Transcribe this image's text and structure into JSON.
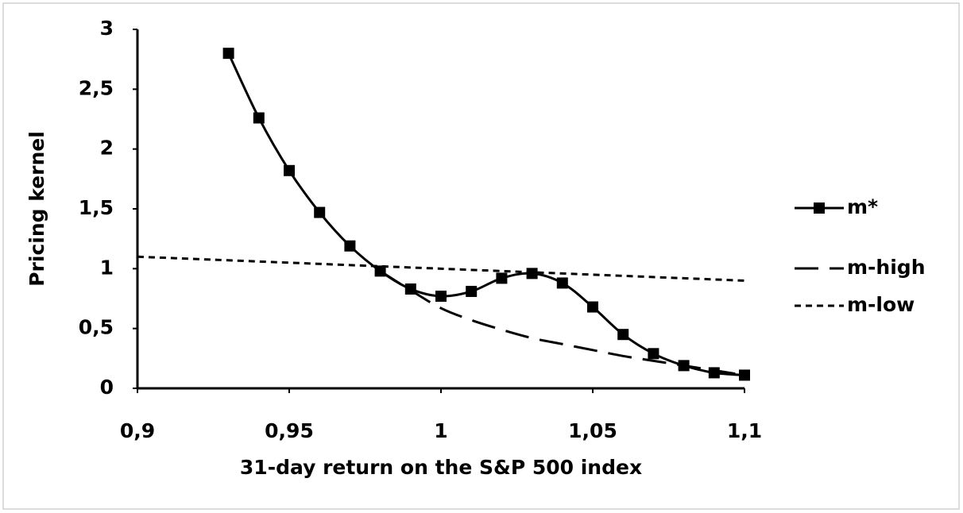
{
  "chart_data": {
    "type": "line",
    "xlabel": "31-day return on the S&P 500 index",
    "ylabel": "Pricing kernel",
    "xlim": [
      0.9,
      1.1
    ],
    "xticks": [
      {
        "value": 0.9,
        "label": "0,9"
      },
      {
        "value": 0.95,
        "label": "0,95"
      },
      1,
      {
        "value": 1.05,
        "label": "1,05"
      },
      {
        "value": 1.1,
        "label": "1,1"
      }
    ],
    "ylim": [
      0,
      3
    ],
    "yticks": [
      0,
      {
        "value": 0.5,
        "label": "0,5"
      },
      1,
      {
        "value": 1.5,
        "label": "1,5"
      },
      2,
      {
        "value": 2.5,
        "label": "2,5"
      },
      3
    ],
    "legend": "right",
    "series": [
      {
        "name": "m*",
        "color": "#000000",
        "style": "solid-markers",
        "x": [
          0.93,
          0.94,
          0.95,
          0.96,
          0.97,
          0.98,
          0.99,
          1.0,
          1.01,
          1.02,
          1.03,
          1.04,
          1.05,
          1.06,
          1.07,
          1.08,
          1.09,
          1.1
        ],
        "values": [
          2.8,
          2.26,
          1.82,
          1.47,
          1.19,
          0.98,
          0.83,
          0.77,
          0.81,
          0.92,
          0.96,
          0.88,
          0.68,
          0.45,
          0.29,
          0.19,
          0.13,
          0.11
        ]
      },
      {
        "name": "m-high",
        "color": "#000000",
        "style": "dashed",
        "x": [
          0.98,
          0.99,
          1.0,
          1.01,
          1.02,
          1.03,
          1.04,
          1.05,
          1.06,
          1.07,
          1.08,
          1.09,
          1.1
        ],
        "values": [
          0.98,
          0.82,
          0.67,
          0.57,
          0.49,
          0.42,
          0.37,
          0.32,
          0.27,
          0.23,
          0.19,
          0.15,
          0.11
        ]
      },
      {
        "name": "m-low",
        "color": "#000000",
        "style": "dotted",
        "x": [
          0.9,
          1.0,
          1.1
        ],
        "values": [
          1.1,
          1.0,
          0.9
        ]
      }
    ]
  }
}
